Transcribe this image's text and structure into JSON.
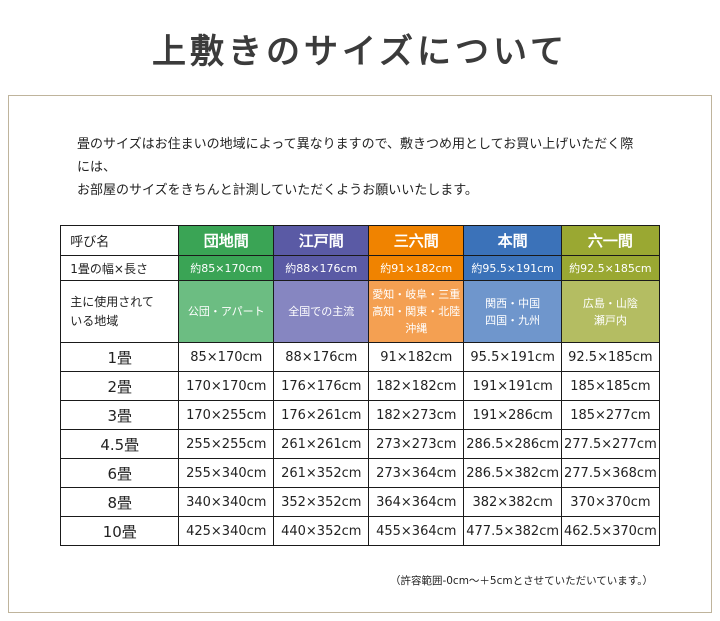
{
  "title": "上敷きのサイズについて",
  "description": "畳のサイズはお住まいの地域によって異なりますので、敷きつめ用としてお買い上げいただく際には、\nお部屋のサイズをきちんと計測していただくようお願いいたします。",
  "footnote": "（許容範囲-0cm〜＋5cmとさせていただいています。）",
  "table": {
    "corner_label": "呼び名",
    "columns": [
      {
        "label": "団地間",
        "color": "#3aa455",
        "light": "#6cbd82"
      },
      {
        "label": "江戸間",
        "color": "#5a5aa5",
        "light": "#8686c1"
      },
      {
        "label": "三六間",
        "color": "#f08300",
        "light": "#f4a052"
      },
      {
        "label": "本間",
        "color": "#3b72b9",
        "light": "#6f96cc"
      },
      {
        "label": "六一間",
        "color": "#9aa832",
        "light": "#b4bd62"
      }
    ],
    "width_row": {
      "label": "1畳の幅×長さ",
      "values": [
        "約85×170cm",
        "約88×176cm",
        "約91×182cm",
        "約95.5×191cm",
        "約92.5×185cm"
      ]
    },
    "region_row": {
      "label": "主に使用されて\nいる地域",
      "values": [
        "公団・アパート",
        "全国での主流",
        "愛知・岐阜・三重\n高知・関東・北陸\n沖縄",
        "関西・中国\n四国・九州",
        "広島・山陰\n瀬戸内"
      ]
    },
    "size_rows": [
      {
        "label": "1畳",
        "values": [
          "85×170cm",
          "88×176cm",
          "91×182cm",
          "95.5×191cm",
          "92.5×185cm"
        ]
      },
      {
        "label": "2畳",
        "values": [
          "170×170cm",
          "176×176cm",
          "182×182cm",
          "191×191cm",
          "185×185cm"
        ]
      },
      {
        "label": "3畳",
        "values": [
          "170×255cm",
          "176×261cm",
          "182×273cm",
          "191×286cm",
          "185×277cm"
        ]
      },
      {
        "label": "4.5畳",
        "values": [
          "255×255cm",
          "261×261cm",
          "273×273cm",
          "286.5×286cm",
          "277.5×277cm"
        ]
      },
      {
        "label": "6畳",
        "values": [
          "255×340cm",
          "261×352cm",
          "273×364cm",
          "286.5×382cm",
          "277.5×368cm"
        ]
      },
      {
        "label": "8畳",
        "values": [
          "340×340cm",
          "352×352cm",
          "364×364cm",
          "382×382cm",
          "370×370cm"
        ]
      },
      {
        "label": "10畳",
        "values": [
          "425×340cm",
          "440×352cm",
          "455×364cm",
          "477.5×382cm",
          "462.5×370cm"
        ]
      }
    ]
  }
}
